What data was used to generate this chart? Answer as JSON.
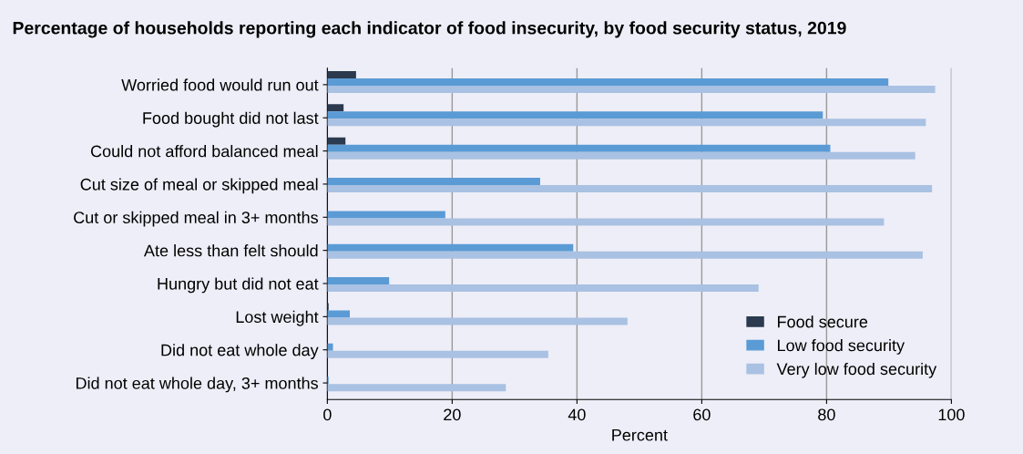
{
  "chart_data": {
    "type": "bar",
    "orientation": "horizontal",
    "title": "Percentage of households reporting each indicator of food insecurity, by food security status, 2019",
    "xlabel": "Percent",
    "categories": [
      "Worried food would run out",
      "Food bought did not last",
      "Could not afford balanced meal",
      "Cut size of meal or skipped meal",
      "Cut or skipped meal in 3+ months",
      "Ate less than felt should",
      "Hungry but did not eat",
      "Lost weight",
      "Did not eat whole day",
      "Did not eat whole day, 3+ months"
    ],
    "series": [
      {
        "name": "Food secure",
        "color": "#2b3a4e",
        "values": [
          4.6,
          2.6,
          2.9,
          null,
          null,
          null,
          null,
          0.2,
          null,
          null
        ]
      },
      {
        "name": "Low food security",
        "color": "#5b9bd5",
        "values": [
          89.9,
          79.4,
          80.6,
          34.1,
          18.9,
          39.4,
          9.9,
          3.6,
          0.9,
          0.2
        ]
      },
      {
        "name": "Very low food security",
        "color": "#a9c1e2",
        "values": [
          97.4,
          95.9,
          94.2,
          96.9,
          89.2,
          95.4,
          69.1,
          48.1,
          35.4,
          28.6
        ]
      }
    ],
    "xlim": [
      0,
      100
    ],
    "xticks": [
      0,
      20,
      40,
      60,
      80,
      100
    ],
    "grid": "x",
    "legend": "bottom right"
  }
}
